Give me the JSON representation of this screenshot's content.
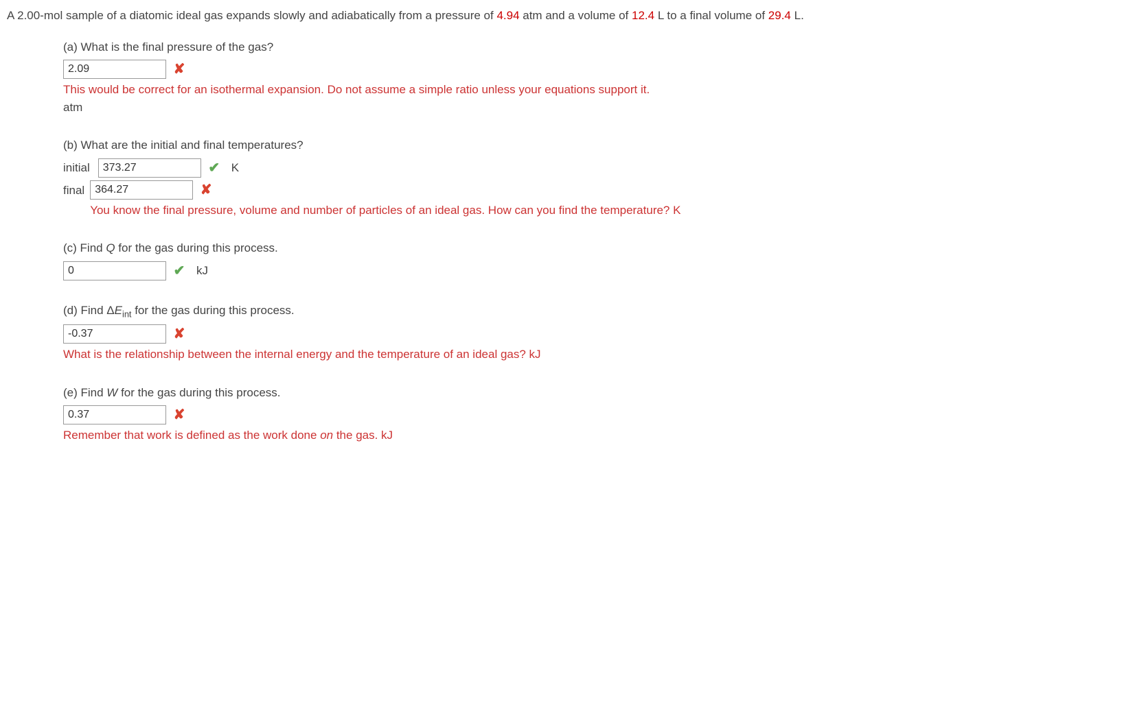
{
  "problem": {
    "text_parts": [
      "A 2.00-mol sample of a diatomic ideal gas expands slowly and adiabatically from a pressure of ",
      " atm and a volume of ",
      " L to a final volume of ",
      " L."
    ],
    "values": {
      "pressure": "4.94",
      "initial_volume": "12.4",
      "final_volume": "29.4"
    }
  },
  "parts": {
    "a": {
      "question": "(a) What is the final pressure of the gas?",
      "answer_value": "2.09",
      "correct": false,
      "feedback": "This would be correct for an isothermal expansion. Do not assume a simple ratio unless your equations support it.",
      "unit": "atm"
    },
    "b": {
      "question": "(b) What are the initial and final temperatures?",
      "initial": {
        "label": "initial",
        "answer_value": "373.27",
        "correct": true,
        "unit": "K"
      },
      "final": {
        "label": "final",
        "answer_value": "364.27",
        "correct": false,
        "feedback": "You know the final pressure, volume and number of particles of an ideal gas. How can you find the temperature?",
        "unit": " K"
      }
    },
    "c": {
      "question_prefix": "(c) Find ",
      "question_var": "Q",
      "question_suffix": " for the gas during this process.",
      "answer_value": "0",
      "correct": true,
      "unit": "kJ"
    },
    "d": {
      "question_prefix": "(d) Find Δ",
      "question_var": "E",
      "question_sub": "int",
      "question_suffix": " for the gas during this process.",
      "answer_value": "-0.37",
      "correct": false,
      "feedback": "What is the relationship between the internal energy and the temperature of an ideal gas?",
      "unit": " kJ"
    },
    "e": {
      "question_prefix": "(e) Find ",
      "question_var": "W",
      "question_suffix": " for the gas during this process.",
      "answer_value": "0.37",
      "correct": false,
      "feedback_prefix": "Remember that work is defined as the work done ",
      "feedback_italic": "on",
      "feedback_suffix": " the gas.",
      "unit": " kJ"
    }
  },
  "icons": {
    "correct": "✔",
    "incorrect": "✘"
  }
}
